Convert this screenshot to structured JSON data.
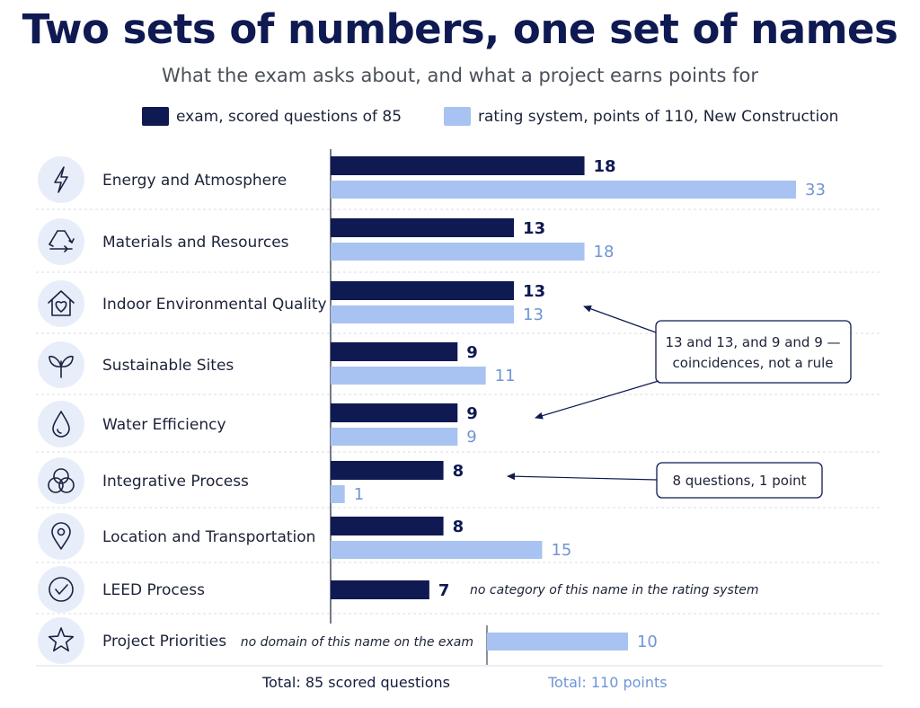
{
  "title": "Two sets of numbers, one set of names",
  "subtitle": "What the exam asks about, and what a project earns points for",
  "colors": {
    "exam": "#0f1a52",
    "rating": "#a8c2f2",
    "rating_text": "#6f95d6",
    "title": "#0f1a52",
    "icon_bg": "#e8eef9",
    "icon_stroke": "#1b2240"
  },
  "legend": {
    "exam": "exam, scored questions of 85",
    "rating": "rating system, points of 110, New Construction"
  },
  "totals": {
    "exam": "Total: 85 scored questions",
    "rating": "Total: 110 points"
  },
  "chart_data": {
    "type": "bar",
    "orientation": "horizontal",
    "title": "Two sets of numbers, one set of names",
    "subtitle": "What the exam asks about, and what a project earns points for",
    "categories": [
      "Energy and Atmosphere",
      "Materials and Resources",
      "Indoor Environmental Quality",
      "Sustainable Sites",
      "Water Efficiency",
      "Integrative Process",
      "Location and Transportation",
      "LEED Process",
      "Project Priorities"
    ],
    "icons": [
      "lightning-icon",
      "recycle-icon",
      "house-heart-icon",
      "leaf-icon",
      "water-drop-icon",
      "overlapping-circles-icon",
      "location-pin-icon",
      "check-circle-icon",
      "star-icon"
    ],
    "series": [
      {
        "name": "exam, scored questions of 85",
        "values": [
          18,
          13,
          13,
          9,
          9,
          8,
          8,
          7,
          null
        ]
      },
      {
        "name": "rating system, points of 110, New Construction",
        "values": [
          33,
          18,
          13,
          11,
          9,
          1,
          15,
          null,
          10
        ]
      }
    ],
    "notes": {
      "LEED Process": "no category of this name in the rating system",
      "Project Priorities": "no domain of this name on the exam"
    },
    "annotations": [
      "13 and 13, and 9 and 9 — coincidences, not a rule",
      "8 questions, 1 point"
    ],
    "legend_position": "top",
    "grid": false
  }
}
